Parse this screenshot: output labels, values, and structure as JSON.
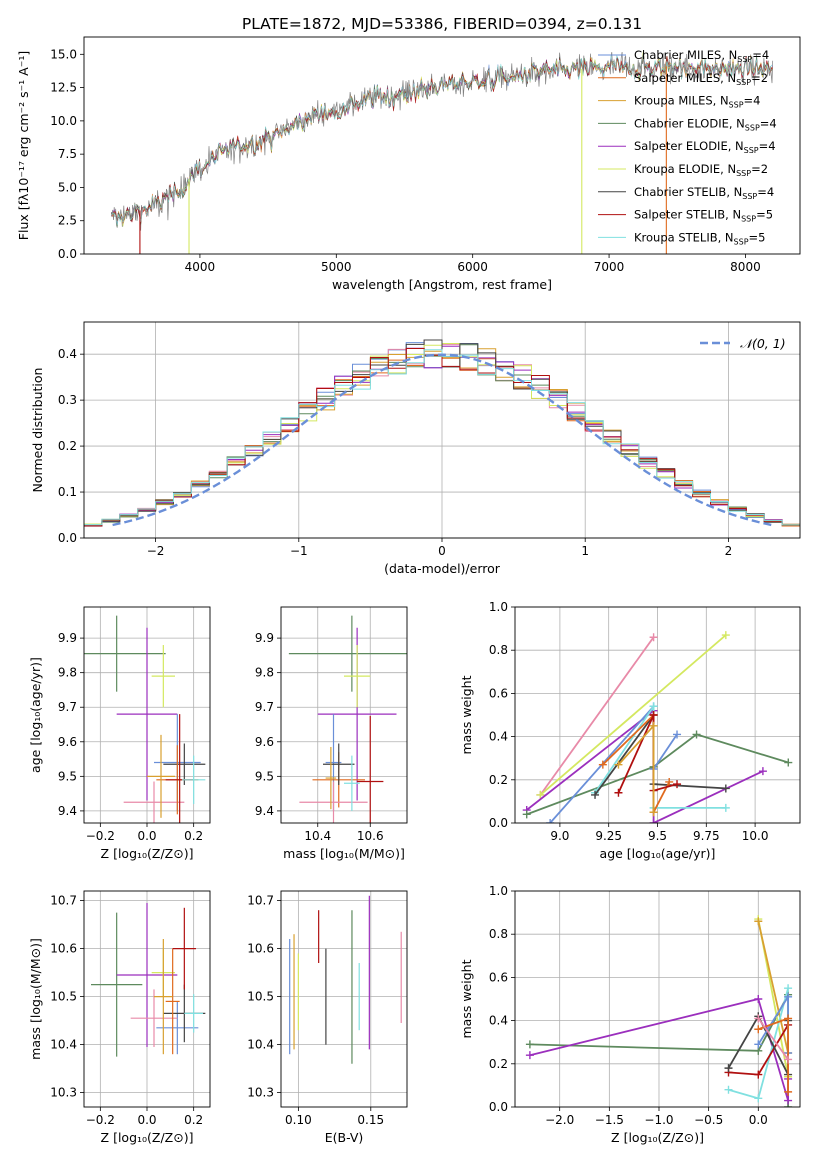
{
  "figure_title": "PLATE=1872, MJD=53386, FIBERID=0394, z=0.131",
  "colors": {
    "c0": "#6a8fd8",
    "c1": "#e06a1e",
    "c2": "#e88aa8",
    "c3": "#d8a030",
    "c4": "#5e8a5e",
    "c5": "#9b2fbd",
    "c6": "#d4e860",
    "c7": "#444444",
    "c8": "#b01010",
    "c9": "#80e0e0"
  },
  "chart_data": [
    {
      "id": "spectrum",
      "type": "line",
      "title": "PLATE=1872, MJD=53386, FIBERID=0394, z=0.131",
      "xlabel": "wavelength [Angstrom, rest frame]",
      "ylabel": "Flux [fλ10⁻¹⁷ erg cm⁻² s⁻¹ A⁻¹]",
      "xlim": [
        3150,
        8400
      ],
      "ylim": [
        0,
        16.3
      ],
      "xticks": [
        4000,
        5000,
        6000,
        7000,
        8000
      ],
      "yticks": [
        0.0,
        2.5,
        5.0,
        7.5,
        10.0,
        12.5,
        15.0
      ],
      "grid": false,
      "legend": "upper-right",
      "data_wavelength_range": [
        3350,
        8200
      ],
      "continuum": [
        [
          3350,
          2.6
        ],
        [
          3600,
          3.4
        ],
        [
          3800,
          4.3
        ],
        [
          4000,
          6.5
        ],
        [
          4200,
          7.8
        ],
        [
          4500,
          8.7
        ],
        [
          4800,
          10.2
        ],
        [
          5000,
          10.9
        ],
        [
          5200,
          11.6
        ],
        [
          5500,
          12.1
        ],
        [
          5800,
          12.7
        ],
        [
          6000,
          13.0
        ],
        [
          6300,
          13.3
        ],
        [
          6600,
          13.8
        ],
        [
          7000,
          14.0
        ],
        [
          7400,
          14.1
        ],
        [
          7800,
          13.9
        ],
        [
          8200,
          13.9
        ]
      ],
      "series": [
        {
          "name": "Chabrier MILES, N$_{SSP}$=4",
          "label_main": "Chabrier MILES, N",
          "label_sub": "SSP",
          "label_tail": "=4",
          "color_key": "c0",
          "style": "line"
        },
        {
          "name": "Salpeter MILES, N$_{SSP}$=2",
          "label_main": "Salpeter MILES, N",
          "label_sub": "SSP",
          "label_tail": "=2",
          "color_key": "c1",
          "style": "line"
        },
        {
          "name": "Kroupa MILES, N$_{SSP}$=4",
          "label_main": "Kroupa MILES, N",
          "label_sub": "SSP",
          "label_tail": "=4",
          "color_key": "c3",
          "style": "line"
        },
        {
          "name": "Chabrier ELODIE, N$_{SSP}$=4",
          "label_main": "Chabrier ELODIE, N",
          "label_sub": "SSP",
          "label_tail": "=4",
          "color_key": "c4",
          "style": "line"
        },
        {
          "name": "Salpeter ELODIE, N$_{SSP}$=4",
          "label_main": "Salpeter ELODIE, N",
          "label_sub": "SSP",
          "label_tail": "=4",
          "color_key": "c5",
          "style": "line"
        },
        {
          "name": "Kroupa ELODIE, N$_{SSP}$=2",
          "label_main": "Kroupa ELODIE, N",
          "label_sub": "SSP",
          "label_tail": "=2",
          "color_key": "c6",
          "style": "line"
        },
        {
          "name": "Chabrier STELIB, N$_{SSP}$=4",
          "label_main": "Chabrier STELIB, N",
          "label_sub": "SSP",
          "label_tail": "=4",
          "color_key": "c7",
          "style": "line"
        },
        {
          "name": "Salpeter STELIB, N$_{SSP}$=5",
          "label_main": "Salpeter STELIB, N",
          "label_sub": "SSP",
          "label_tail": "=5",
          "color_key": "c8",
          "style": "line"
        },
        {
          "name": "Kroupa STELIB, N$_{SSP}$=5",
          "label_main": "Kroupa STELIB, N",
          "label_sub": "SSP",
          "label_tail": "=5",
          "color_key": "c9",
          "style": "line"
        }
      ]
    },
    {
      "id": "residuals",
      "type": "histogram",
      "xlabel": "(data-model)/error",
      "ylabel": "Normed distribution",
      "xlim": [
        -2.5,
        2.5
      ],
      "ylim": [
        0,
        0.47
      ],
      "xticks": [
        -2,
        -1,
        0,
        1,
        2
      ],
      "yticks": [
        0.0,
        0.1,
        0.2,
        0.3,
        0.4
      ],
      "grid": true,
      "legend": "upper-right",
      "legend_label": "𝒩(0, 1)",
      "reference_curve": {
        "type": "gaussian",
        "mu": 0,
        "sigma": 1,
        "color_key": "c0",
        "style": "dashed"
      },
      "bin_edges_range": [
        -2.5,
        2.5
      ],
      "n_bins": 40,
      "hist_color_keys": [
        "c0",
        "c1",
        "c2",
        "c3",
        "c4",
        "c5",
        "c6",
        "c7",
        "c8",
        "c9"
      ]
    },
    {
      "id": "age_vs_Z",
      "type": "errorbar",
      "xlabel": "Z [log₁₀(Z/Z⊙)]",
      "ylabel": "age  [log₁₀(age/yr)]",
      "xlim": [
        -0.27,
        0.27
      ],
      "ylim": [
        9.365,
        9.99
      ],
      "xticks": [
        -0.2,
        0.0,
        0.2
      ],
      "yticks": [
        9.4,
        9.5,
        9.6,
        9.7,
        9.8,
        9.9
      ],
      "grid": true,
      "points": [
        {
          "x": -0.13,
          "y": 9.855,
          "xerr": 0.21,
          "yerr": 0.11,
          "c": "c4"
        },
        {
          "x": 0.0,
          "y": 9.68,
          "xerr": 0.13,
          "yerr": 0.25,
          "c": "c5"
        },
        {
          "x": 0.07,
          "y": 9.79,
          "xerr": 0.05,
          "yerr": 0.09,
          "c": "c6"
        },
        {
          "x": 0.13,
          "y": 9.54,
          "xerr": 0.1,
          "yerr": 0.14,
          "c": "c0"
        },
        {
          "x": 0.03,
          "y": 9.425,
          "xerr": 0.13,
          "yerr": 0.06,
          "c": "c2"
        },
        {
          "x": 0.16,
          "y": 9.535,
          "xerr": 0.09,
          "yerr": 0.06,
          "c": "c7"
        },
        {
          "x": 0.13,
          "y": 9.49,
          "xerr": 0.09,
          "yerr": 0.1,
          "c": "c1"
        },
        {
          "x": 0.06,
          "y": 9.5,
          "xerr": 0.06,
          "yerr": 0.12,
          "c": "c3"
        },
        {
          "x": 0.14,
          "y": 9.49,
          "xerr": 0.06,
          "yerr": 0.19,
          "c": "c8"
        },
        {
          "x": 0.2,
          "y": 9.49,
          "xerr": 0.05,
          "yerr": 0.07,
          "c": "c9"
        }
      ]
    },
    {
      "id": "age_vs_mass",
      "type": "errorbar",
      "xlabel": "mass [log₁₀(M/M⊙)]",
      "ylabel": "",
      "xlim": [
        10.26,
        10.74
      ],
      "ylim": [
        9.365,
        9.99
      ],
      "xticks": [
        10.4,
        10.6
      ],
      "yticks": [
        9.4,
        9.5,
        9.6,
        9.7,
        9.8,
        9.9
      ],
      "grid": true,
      "points": [
        {
          "x": 10.53,
          "y": 9.855,
          "xerr": 0.24,
          "yerr": 0.11,
          "c": "c4"
        },
        {
          "x": 10.55,
          "y": 9.68,
          "xerr": 0.15,
          "yerr": 0.25,
          "c": "c5"
        },
        {
          "x": 10.55,
          "y": 9.79,
          "xerr": 0.05,
          "yerr": 0.09,
          "c": "c6"
        },
        {
          "x": 10.46,
          "y": 9.54,
          "xerr": 0.03,
          "yerr": 0.14,
          "c": "c0"
        },
        {
          "x": 10.48,
          "y": 9.49,
          "xerr": 0.1,
          "yerr": 0.08,
          "c": "c1"
        },
        {
          "x": 10.46,
          "y": 9.425,
          "xerr": 0.13,
          "yerr": 0.06,
          "c": "c2"
        },
        {
          "x": 10.48,
          "y": 9.535,
          "xerr": 0.06,
          "yerr": 0.06,
          "c": "c7"
        },
        {
          "x": 10.6,
          "y": 9.485,
          "xerr": 0.05,
          "yerr": 0.19,
          "c": "c8"
        },
        {
          "x": 10.53,
          "y": 9.48,
          "xerr": 0.03,
          "yerr": 0.08,
          "c": "c9"
        },
        {
          "x": 10.45,
          "y": 9.495,
          "xerr": 0.02,
          "yerr": 0.09,
          "c": "c3"
        }
      ]
    },
    {
      "id": "weight_vs_age",
      "type": "line",
      "xlabel": "age  [log₁₀(age/yr)]",
      "ylabel": "mass weight",
      "xlim": [
        8.77,
        10.23
      ],
      "ylim": [
        0,
        1.0
      ],
      "xticks": [
        9.0,
        9.25,
        9.5,
        9.75,
        10.0
      ],
      "yticks": [
        0.0,
        0.2,
        0.4,
        0.6,
        0.8,
        1.0
      ],
      "grid": true,
      "series": [
        {
          "c": "c2",
          "points": [
            [
              8.9,
              0.13
            ],
            [
              9.48,
              0.86
            ]
          ]
        },
        {
          "c": "c6",
          "points": [
            [
              8.9,
              0.13
            ],
            [
              9.85,
              0.87
            ]
          ]
        },
        {
          "c": "c5",
          "points": [
            [
              8.83,
              0.06
            ],
            [
              9.48,
              0.52
            ],
            [
              9.48,
              0.0
            ],
            [
              10.04,
              0.24
            ]
          ]
        },
        {
          "c": "c4",
          "points": [
            [
              8.83,
              0.04
            ],
            [
              9.48,
              0.26
            ],
            [
              9.7,
              0.41
            ],
            [
              10.17,
              0.28
            ]
          ]
        },
        {
          "c": "c0",
          "points": [
            [
              8.95,
              0.0
            ],
            [
              9.48,
              0.54
            ],
            [
              9.48,
              0.25
            ],
            [
              9.6,
              0.41
            ]
          ]
        },
        {
          "c": "c9",
          "points": [
            [
              9.18,
              0.14
            ],
            [
              9.48,
              0.54
            ],
            [
              9.48,
              0.07
            ],
            [
              9.85,
              0.07
            ]
          ]
        },
        {
          "c": "c7",
          "points": [
            [
              9.18,
              0.13
            ],
            [
              9.48,
              0.5
            ],
            [
              9.48,
              0.18
            ],
            [
              9.85,
              0.16
            ]
          ]
        },
        {
          "c": "c1",
          "points": [
            [
              9.22,
              0.27
            ],
            [
              9.48,
              0.5
            ],
            [
              9.48,
              0.05
            ],
            [
              9.56,
              0.19
            ]
          ]
        },
        {
          "c": "c8",
          "points": [
            [
              9.3,
              0.14
            ],
            [
              9.48,
              0.5
            ],
            [
              9.48,
              0.15
            ],
            [
              9.6,
              0.18
            ]
          ]
        },
        {
          "c": "c3",
          "points": [
            [
              9.3,
              0.27
            ],
            [
              9.48,
              0.45
            ],
            [
              9.48,
              0.05
            ]
          ]
        }
      ]
    },
    {
      "id": "mass_vs_Z",
      "type": "errorbar",
      "xlabel": "Z [log₁₀(Z/Z⊙)]",
      "ylabel": "mass [log₁₀(M/M⊙)]",
      "xlim": [
        -0.27,
        0.27
      ],
      "ylim": [
        10.27,
        10.72
      ],
      "xticks": [
        -0.2,
        0.0,
        0.2
      ],
      "yticks": [
        10.3,
        10.4,
        10.5,
        10.6,
        10.7
      ],
      "grid": true,
      "points": [
        {
          "x": -0.13,
          "y": 10.525,
          "xerr": 0.11,
          "yerr": 0.15,
          "c": "c4"
        },
        {
          "x": 0.0,
          "y": 10.545,
          "xerr": 0.13,
          "yerr": 0.15,
          "c": "c5"
        },
        {
          "x": 0.07,
          "y": 10.55,
          "xerr": 0.05,
          "yerr": 0.05,
          "c": "c6"
        },
        {
          "x": 0.13,
          "y": 10.435,
          "xerr": 0.09,
          "yerr": 0.055,
          "c": "c0"
        },
        {
          "x": 0.03,
          "y": 10.455,
          "xerr": 0.1,
          "yerr": 0.06,
          "c": "c2"
        },
        {
          "x": 0.16,
          "y": 10.465,
          "xerr": 0.09,
          "yerr": 0.06,
          "c": "c7"
        },
        {
          "x": 0.11,
          "y": 10.49,
          "xerr": 0.03,
          "yerr": 0.11,
          "c": "c1"
        },
        {
          "x": 0.07,
          "y": 10.5,
          "xerr": 0.04,
          "yerr": 0.12,
          "c": "c3"
        },
        {
          "x": 0.16,
          "y": 10.6,
          "xerr": 0.05,
          "yerr": 0.085,
          "c": "c8"
        },
        {
          "x": 0.2,
          "y": 10.465,
          "xerr": 0.04,
          "yerr": 0.04,
          "c": "c9"
        }
      ]
    },
    {
      "id": "mass_vs_EBV",
      "type": "errorbar",
      "xlabel": "E(B-V)",
      "ylabel": "",
      "xlim": [
        0.088,
        0.175
      ],
      "ylim": [
        10.27,
        10.72
      ],
      "xticks": [
        0.1,
        0.15
      ],
      "yticks": [
        10.3,
        10.4,
        10.5,
        10.6,
        10.7
      ],
      "grid": true,
      "points": [
        {
          "x": 0.094,
          "y": 10.5,
          "xerr": 0,
          "yerr": 0.12,
          "c": "c0"
        },
        {
          "x": 0.097,
          "y": 10.51,
          "xerr": 0,
          "yerr": 0.12,
          "c": "c3"
        },
        {
          "x": 0.1,
          "y": 10.51,
          "xerr": 0,
          "yerr": 0.08,
          "c": "c6"
        },
        {
          "x": 0.114,
          "y": 10.625,
          "xerr": 0,
          "yerr": 0.055,
          "c": "c8"
        },
        {
          "x": 0.119,
          "y": 10.5,
          "xerr": 0,
          "yerr": 0.1,
          "c": "c7"
        },
        {
          "x": 0.137,
          "y": 10.52,
          "xerr": 0,
          "yerr": 0.16,
          "c": "c4"
        },
        {
          "x": 0.142,
          "y": 10.5,
          "xerr": 0,
          "yerr": 0.07,
          "c": "c9"
        },
        {
          "x": 0.149,
          "y": 10.55,
          "xerr": 0,
          "yerr": 0.16,
          "c": "c5"
        },
        {
          "x": 0.171,
          "y": 10.54,
          "xerr": 0,
          "yerr": 0.095,
          "c": "c2"
        }
      ]
    },
    {
      "id": "weight_vs_Z",
      "type": "line",
      "xlabel": "Z [log₁₀(Z/Z⊙)]",
      "ylabel": "mass weight",
      "xlim": [
        -2.45,
        0.42
      ],
      "ylim": [
        0,
        1.0
      ],
      "xticks": [
        -2.0,
        -1.5,
        -1.0,
        -0.5,
        0.0
      ],
      "yticks": [
        0.0,
        0.2,
        0.4,
        0.6,
        0.8,
        1.0
      ],
      "grid": true,
      "series": [
        {
          "c": "c4",
          "points": [
            [
              -2.3,
              0.29
            ],
            [
              0.0,
              0.26
            ],
            [
              0.3,
              0.52
            ],
            [
              0.3,
              0.0
            ]
          ]
        },
        {
          "c": "c5",
          "points": [
            [
              -2.3,
              0.24
            ],
            [
              0.0,
              0.5
            ],
            [
              0.3,
              0.03
            ],
            [
              0.3,
              0.13
            ]
          ]
        },
        {
          "c": "c6",
          "points": [
            [
              0.0,
              0.87
            ],
            [
              0.3,
              0.14
            ]
          ]
        },
        {
          "c": "c3",
          "points": [
            [
              0.0,
              0.86
            ],
            [
              0.3,
              0.25
            ]
          ]
        },
        {
          "c": "c9",
          "points": [
            [
              -0.3,
              0.08
            ],
            [
              0.0,
              0.04
            ],
            [
              0.3,
              0.55
            ]
          ]
        },
        {
          "c": "c8",
          "points": [
            [
              -0.3,
              0.16
            ],
            [
              0.0,
              0.15
            ],
            [
              0.3,
              0.38
            ]
          ]
        },
        {
          "c": "c7",
          "points": [
            [
              -0.3,
              0.18
            ],
            [
              0.0,
              0.42
            ],
            [
              0.3,
              0.15
            ],
            [
              0.3,
              0.4
            ]
          ]
        },
        {
          "c": "c0",
          "points": [
            [
              0.0,
              0.29
            ],
            [
              0.3,
              0.51
            ],
            [
              0.3,
              0.25
            ]
          ]
        },
        {
          "c": "c1",
          "points": [
            [
              0.0,
              0.36
            ],
            [
              0.3,
              0.41
            ],
            [
              0.3,
              0.07
            ]
          ]
        },
        {
          "c": "c2",
          "points": [
            [
              0.0,
              0.41
            ],
            [
              0.3,
              0.22
            ]
          ]
        }
      ]
    }
  ]
}
